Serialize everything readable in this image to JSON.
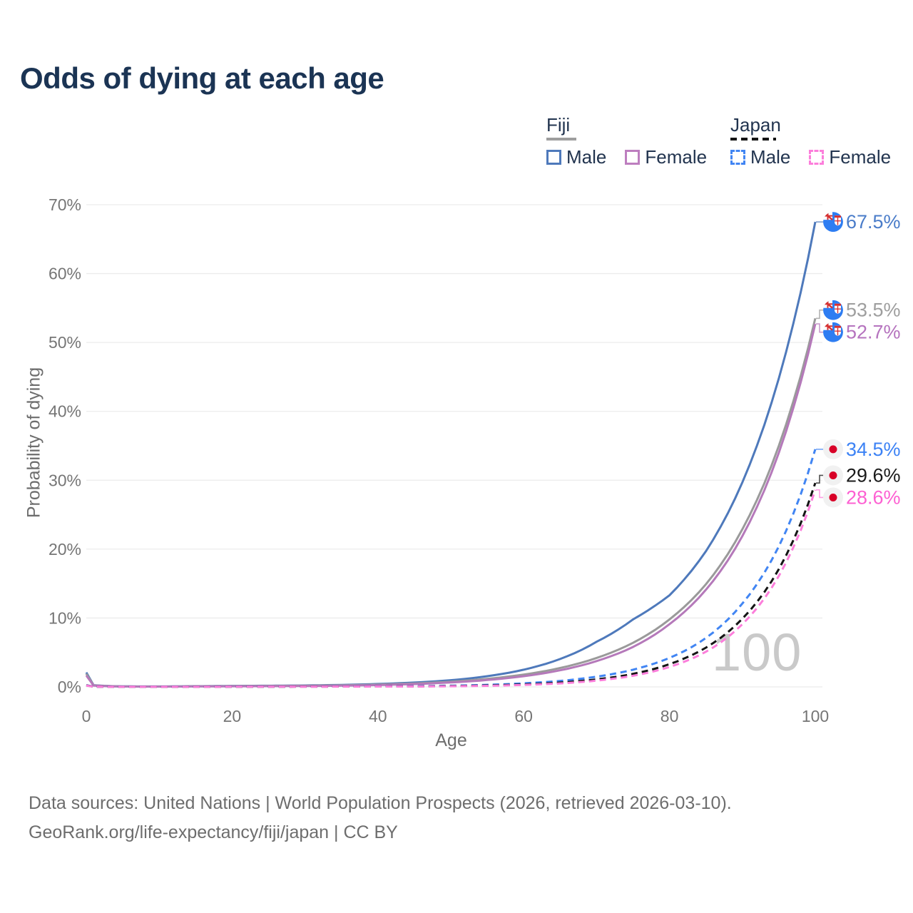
{
  "title": "Odds of dying at each age",
  "watermark": "100",
  "legend": {
    "groups": [
      {
        "label": "Fiji",
        "underline_style": "solid",
        "underline_color": "#9e9e9e",
        "items": [
          {
            "label": "Male",
            "color": "#4e79bb",
            "dashed": false
          },
          {
            "label": "Female",
            "color": "#bd7ebf",
            "dashed": false
          }
        ]
      },
      {
        "label": "Japan",
        "underline_style": "dashed",
        "underline_color": "#141414",
        "items": [
          {
            "label": "Male",
            "color": "#4185f3",
            "dashed": true
          },
          {
            "label": "Female",
            "color": "#fc7edb",
            "dashed": true
          }
        ]
      }
    ]
  },
  "axes": {
    "y_label": "Probability of dying",
    "x_label": "Age",
    "y_ticks": [
      {
        "value": 0,
        "label": "0%"
      },
      {
        "value": 10,
        "label": "10%"
      },
      {
        "value": 20,
        "label": "20%"
      },
      {
        "value": 30,
        "label": "30%"
      },
      {
        "value": 40,
        "label": "40%"
      },
      {
        "value": 50,
        "label": "50%"
      },
      {
        "value": 60,
        "label": "60%"
      },
      {
        "value": 70,
        "label": "70%"
      }
    ],
    "x_ticks": [
      {
        "value": 0,
        "label": "0"
      },
      {
        "value": 20,
        "label": "20"
      },
      {
        "value": 40,
        "label": "40"
      },
      {
        "value": 60,
        "label": "60"
      },
      {
        "value": 80,
        "label": "80"
      },
      {
        "value": 100,
        "label": "100"
      }
    ]
  },
  "footer": {
    "line1": "Data sources: United Nations | World Population Prospects (2026, retrieved 2026-03-10).",
    "line2": "GeoRank.org/life-expectancy/fiji/japan | CC BY"
  },
  "chart_data": {
    "type": "line",
    "title": "Odds of dying at each age",
    "xlabel": "Age",
    "ylabel": "Probability of dying",
    "xlim": [
      0,
      100
    ],
    "ylim": [
      0,
      70
    ],
    "grid": "horizontal",
    "legend_position": "top-right",
    "x": [
      0,
      1,
      5,
      10,
      15,
      20,
      25,
      30,
      35,
      40,
      45,
      50,
      55,
      60,
      65,
      70,
      75,
      80,
      85,
      90,
      95,
      100
    ],
    "series": [
      {
        "name": "Fiji Male",
        "country": "Fiji",
        "sex": "Male",
        "color": "#4e79bb",
        "dashed": false,
        "flag_icon": "fiji-flag-icon",
        "end_label": "67.5%",
        "end_value": 67.5,
        "label_color": "#4a7cc9",
        "values": [
          2.1,
          0.25,
          0.07,
          0.06,
          0.1,
          0.14,
          0.17,
          0.21,
          0.29,
          0.42,
          0.63,
          0.97,
          1.55,
          2.5,
          4.05,
          6.55,
          9.8,
          13.3,
          19.7,
          29.7,
          44.8,
          67.5
        ]
      },
      {
        "name": "Fiji Both",
        "country": "Fiji",
        "sex": "Both",
        "color": "#9a9a9a",
        "dashed": false,
        "flag_icon": "fiji-flag-icon",
        "end_label": "53.5%",
        "end_value": 53.5,
        "label_color": "#9e9e9e",
        "values": [
          1.9,
          0.22,
          0.06,
          0.05,
          0.08,
          0.11,
          0.14,
          0.17,
          0.23,
          0.33,
          0.5,
          0.76,
          1.17,
          1.79,
          2.74,
          4.2,
          6.4,
          9.8,
          14.9,
          22.9,
          35.0,
          53.5
        ]
      },
      {
        "name": "Fiji Female",
        "country": "Fiji",
        "sex": "Female",
        "color": "#b579ba",
        "dashed": false,
        "flag_icon": "fiji-flag-icon",
        "end_label": "52.7%",
        "end_value": 52.7,
        "label_color": "#b573be",
        "values": [
          1.65,
          0.2,
          0.05,
          0.04,
          0.07,
          0.09,
          0.11,
          0.13,
          0.18,
          0.27,
          0.41,
          0.64,
          1.0,
          1.55,
          2.41,
          3.75,
          5.8,
          9.1,
          14.1,
          21.9,
          34.0,
          52.7
        ]
      },
      {
        "name": "Japan Male",
        "country": "Japan",
        "sex": "Male",
        "color": "#4185f3",
        "dashed": true,
        "flag_icon": "japan-flag-icon",
        "end_label": "34.5%",
        "end_value": 34.5,
        "label_color": "#3c82f5",
        "values": [
          0.25,
          0.03,
          0.01,
          0.01,
          0.02,
          0.04,
          0.04,
          0.05,
          0.06,
          0.08,
          0.11,
          0.18,
          0.3,
          0.52,
          0.87,
          1.48,
          2.5,
          4.2,
          7.1,
          12.1,
          20.4,
          34.5
        ]
      },
      {
        "name": "Japan Both",
        "country": "Japan",
        "sex": "Both",
        "color": "#141414",
        "dashed": true,
        "flag_icon": "japan-flag-icon",
        "end_label": "29.6%",
        "end_value": 29.6,
        "label_color": "#1a1a1a",
        "values": [
          0.22,
          0.03,
          0.01,
          0.01,
          0.02,
          0.03,
          0.03,
          0.04,
          0.05,
          0.06,
          0.08,
          0.12,
          0.21,
          0.36,
          0.63,
          1.09,
          1.89,
          3.3,
          5.7,
          9.9,
          17.1,
          29.6
        ]
      },
      {
        "name": "Japan Female",
        "country": "Japan",
        "sex": "Female",
        "color": "#fc7edb",
        "dashed": true,
        "flag_icon": "japan-flag-icon",
        "end_label": "28.6%",
        "end_value": 28.6,
        "label_color": "#fd60d2",
        "values": [
          0.2,
          0.02,
          0.01,
          0.01,
          0.01,
          0.02,
          0.02,
          0.03,
          0.04,
          0.05,
          0.06,
          0.09,
          0.16,
          0.29,
          0.51,
          0.91,
          1.62,
          2.9,
          5.1,
          9.1,
          16.1,
          28.6
        ]
      }
    ]
  },
  "colors": {
    "title": "#1b3454",
    "axis_text": "#757575",
    "gridline": "#ececec",
    "watermark": "#c9c9c9",
    "footer_text": "#6d6d6d",
    "fiji_flag_blue": "#2e7df2",
    "japan_flag_red": "#d80027"
  }
}
